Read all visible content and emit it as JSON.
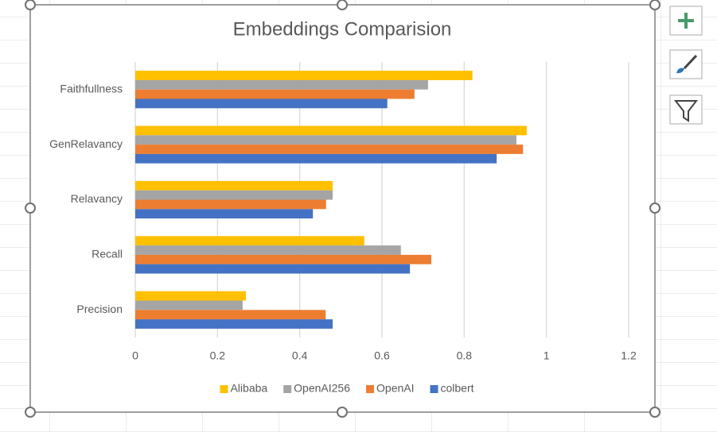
{
  "chart_data": {
    "type": "bar",
    "orientation": "horizontal",
    "title": "Embeddings Comparision",
    "categories": [
      "Faithfullness",
      "GenRelavancy",
      "Relavancy",
      "Recall",
      "Precision"
    ],
    "series": [
      {
        "name": "Alibaba",
        "color": "#ffc000",
        "values": [
          0.82,
          0.952,
          0.48,
          0.557,
          0.269
        ]
      },
      {
        "name": "OpenAI256",
        "color": "#a5a5a5",
        "values": [
          0.712,
          0.927,
          0.48,
          0.646,
          0.261
        ]
      },
      {
        "name": "OpenAI",
        "color": "#ed7d31",
        "values": [
          0.679,
          0.943,
          0.464,
          0.72,
          0.463
        ]
      },
      {
        "name": "colbert",
        "color": "#4472c4",
        "values": [
          0.613,
          0.879,
          0.432,
          0.668,
          0.48
        ]
      }
    ],
    "xlim": [
      0,
      1.2
    ],
    "xticks": [
      0,
      0.2,
      0.4,
      0.6,
      0.8,
      1,
      1.2
    ],
    "grid": true,
    "legend": "bottom"
  }
}
